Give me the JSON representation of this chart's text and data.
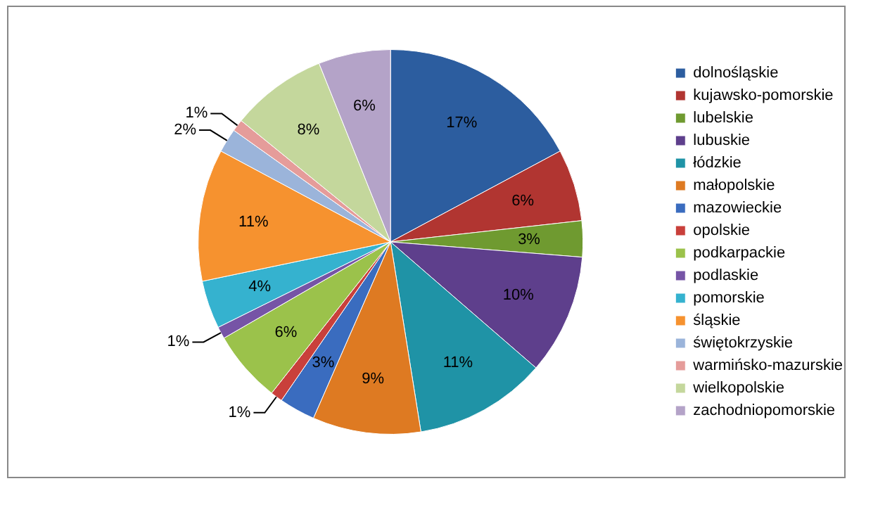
{
  "chart_data": {
    "type": "pie",
    "categories": [
      "dolnośląskie",
      "kujawsko-pomorskie",
      "lubelskie",
      "lubuskie",
      "łódzkie",
      "małopolskie",
      "mazowieckie",
      "opolskie",
      "podkarpackie",
      "podlaskie",
      "pomorskie",
      "śląskie",
      "świętokrzyskie",
      "warmińsko-mazurskie",
      "wielkopolskie",
      "zachodniopomorskie"
    ],
    "values": [
      17,
      6,
      3,
      10,
      11,
      9,
      3,
      1,
      6,
      1,
      4,
      11,
      2,
      1,
      8,
      6
    ],
    "colors": [
      "#2c5d9f",
      "#b13531",
      "#6f9a30",
      "#5e3f8c",
      "#1f93a6",
      "#de7a22",
      "#3a6cbf",
      "#c9403b",
      "#9bc24b",
      "#7654a6",
      "#35b2cf",
      "#f6922f",
      "#9bb4da",
      "#e59c9a",
      "#c4d79c",
      "#b4a3c8"
    ],
    "value_labels": [
      "17%",
      "6%",
      "3%",
      "10%",
      "11%",
      "9%",
      "3%",
      "1%",
      "6%",
      "1%",
      "4%",
      "11%",
      "2%",
      "1%",
      "8%",
      "6%"
    ],
    "legend": "right"
  }
}
